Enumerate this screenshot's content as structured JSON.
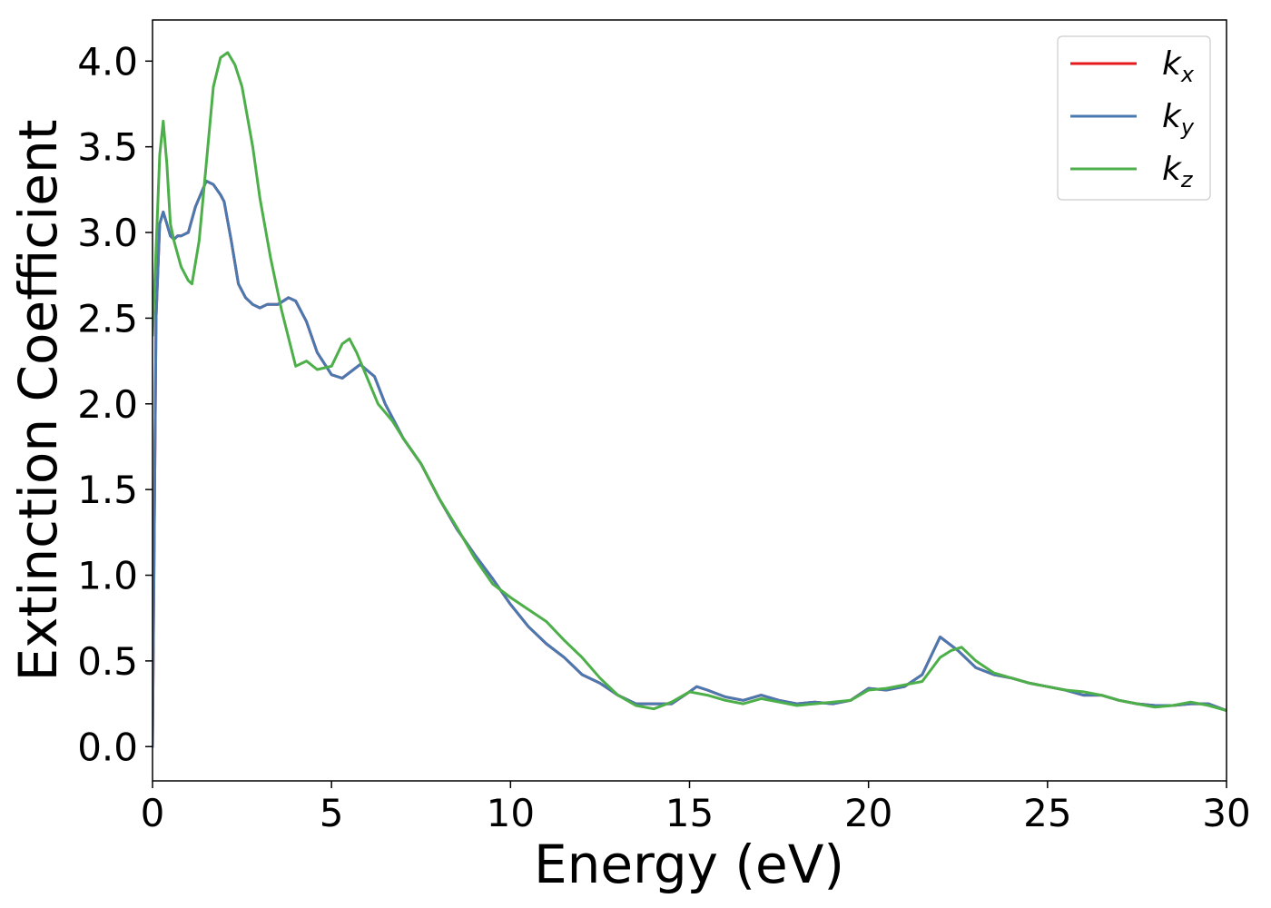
{
  "chart_data": {
    "type": "line",
    "title": "",
    "xlabel": "Energy (eV)",
    "ylabel": "Extinction Coefficient",
    "xlim": [
      0,
      30
    ],
    "ylim": [
      -0.2,
      4.24
    ],
    "xticks": [
      0,
      5,
      10,
      15,
      20,
      25,
      30
    ],
    "xtick_labels": [
      "0",
      "5",
      "10",
      "15",
      "20",
      "25",
      "30"
    ],
    "yticks": [
      0.0,
      0.5,
      1.0,
      1.5,
      2.0,
      2.5,
      3.0,
      3.5,
      4.0
    ],
    "ytick_labels": [
      "0.0",
      "0.5",
      "1.0",
      "1.5",
      "2.0",
      "2.5",
      "3.0",
      "3.5",
      "4.0"
    ],
    "grid": false,
    "legend_position": "top-right",
    "colors": {
      "kx": "#e41a1c",
      "ky": "#4a78b0",
      "kz": "#4daf4a"
    },
    "series": [
      {
        "name": "kx",
        "legend_base": "k",
        "legend_sub": "x",
        "color": "#e41a1c",
        "x": [
          0,
          0.1,
          0.2,
          0.3,
          0.4,
          0.5,
          0.6,
          0.7,
          0.8,
          1.0,
          1.2,
          1.5,
          1.7,
          1.9,
          2.0,
          2.2,
          2.4,
          2.6,
          2.8,
          3.0,
          3.2,
          3.5,
          3.8,
          4.0,
          4.3,
          4.6,
          5.0,
          5.3,
          5.8,
          6.2,
          6.5,
          7.0,
          7.5,
          8.0,
          8.5,
          9.0,
          9.5,
          10.0,
          10.5,
          11.0,
          11.5,
          12.0,
          12.5,
          13.0,
          13.5,
          14.0,
          14.5,
          15.0,
          15.2,
          15.5,
          16.0,
          16.5,
          17.0,
          17.5,
          18.0,
          18.5,
          19.0,
          19.5,
          20.0,
          20.5,
          21.0,
          21.5,
          22.0,
          22.5,
          23.0,
          23.5,
          24.0,
          24.5,
          25.0,
          25.5,
          26.0,
          26.5,
          27.0,
          27.5,
          28.0,
          28.5,
          29.0,
          29.5,
          30.0
        ],
        "values": [
          0.0,
          2.5,
          3.05,
          3.12,
          3.05,
          2.98,
          2.96,
          2.98,
          2.98,
          3.0,
          3.15,
          3.3,
          3.28,
          3.22,
          3.18,
          2.95,
          2.7,
          2.62,
          2.58,
          2.56,
          2.58,
          2.58,
          2.62,
          2.6,
          2.48,
          2.3,
          2.17,
          2.15,
          2.23,
          2.16,
          2.0,
          1.8,
          1.65,
          1.45,
          1.27,
          1.12,
          0.98,
          0.83,
          0.7,
          0.6,
          0.52,
          0.42,
          0.37,
          0.3,
          0.25,
          0.25,
          0.25,
          0.32,
          0.35,
          0.33,
          0.29,
          0.27,
          0.3,
          0.27,
          0.25,
          0.26,
          0.25,
          0.27,
          0.34,
          0.33,
          0.35,
          0.42,
          0.64,
          0.56,
          0.46,
          0.42,
          0.4,
          0.37,
          0.35,
          0.33,
          0.3,
          0.3,
          0.27,
          0.25,
          0.24,
          0.24,
          0.25,
          0.25,
          0.21
        ]
      },
      {
        "name": "ky",
        "legend_base": "k",
        "legend_sub": "y",
        "color": "#4a78b0",
        "x": [
          0,
          0.1,
          0.2,
          0.3,
          0.4,
          0.5,
          0.6,
          0.7,
          0.8,
          1.0,
          1.2,
          1.5,
          1.7,
          1.9,
          2.0,
          2.2,
          2.4,
          2.6,
          2.8,
          3.0,
          3.2,
          3.5,
          3.8,
          4.0,
          4.3,
          4.6,
          5.0,
          5.3,
          5.8,
          6.2,
          6.5,
          7.0,
          7.5,
          8.0,
          8.5,
          9.0,
          9.5,
          10.0,
          10.5,
          11.0,
          11.5,
          12.0,
          12.5,
          13.0,
          13.5,
          14.0,
          14.5,
          15.0,
          15.2,
          15.5,
          16.0,
          16.5,
          17.0,
          17.5,
          18.0,
          18.5,
          19.0,
          19.5,
          20.0,
          20.5,
          21.0,
          21.5,
          22.0,
          22.5,
          23.0,
          23.5,
          24.0,
          24.5,
          25.0,
          25.5,
          26.0,
          26.5,
          27.0,
          27.5,
          28.0,
          28.5,
          29.0,
          29.5,
          30.0
        ],
        "values": [
          0.0,
          2.5,
          3.05,
          3.12,
          3.05,
          2.98,
          2.96,
          2.98,
          2.98,
          3.0,
          3.15,
          3.3,
          3.28,
          3.22,
          3.18,
          2.95,
          2.7,
          2.62,
          2.58,
          2.56,
          2.58,
          2.58,
          2.62,
          2.6,
          2.48,
          2.3,
          2.17,
          2.15,
          2.23,
          2.16,
          2.0,
          1.8,
          1.65,
          1.45,
          1.27,
          1.12,
          0.98,
          0.83,
          0.7,
          0.6,
          0.52,
          0.42,
          0.37,
          0.3,
          0.25,
          0.25,
          0.25,
          0.32,
          0.35,
          0.33,
          0.29,
          0.27,
          0.3,
          0.27,
          0.25,
          0.26,
          0.25,
          0.27,
          0.34,
          0.33,
          0.35,
          0.42,
          0.64,
          0.56,
          0.46,
          0.42,
          0.4,
          0.37,
          0.35,
          0.33,
          0.3,
          0.3,
          0.27,
          0.25,
          0.24,
          0.24,
          0.25,
          0.25,
          0.21
        ]
      },
      {
        "name": "kz",
        "legend_base": "k",
        "legend_sub": "z",
        "color": "#4daf4a",
        "x": [
          0,
          0.1,
          0.2,
          0.3,
          0.4,
          0.5,
          0.6,
          0.8,
          1.0,
          1.1,
          1.3,
          1.5,
          1.7,
          1.9,
          2.1,
          2.3,
          2.5,
          2.8,
          3.0,
          3.3,
          3.6,
          4.0,
          4.3,
          4.6,
          5.0,
          5.3,
          5.5,
          5.7,
          6.0,
          6.3,
          6.7,
          7.0,
          7.5,
          8.0,
          8.5,
          9.0,
          9.5,
          10.0,
          10.5,
          11.0,
          11.5,
          12.0,
          12.5,
          13.0,
          13.5,
          14.0,
          14.5,
          15.0,
          15.5,
          16.0,
          16.5,
          17.0,
          17.5,
          18.0,
          18.5,
          19.0,
          19.5,
          20.0,
          20.5,
          21.0,
          21.5,
          22.0,
          22.3,
          22.6,
          23.0,
          23.5,
          24.0,
          24.5,
          25.0,
          25.5,
          26.0,
          26.5,
          27.0,
          27.5,
          28.0,
          28.5,
          29.0,
          29.5,
          30.0
        ],
        "values": [
          2.4,
          2.9,
          3.45,
          3.65,
          3.4,
          3.05,
          2.95,
          2.8,
          2.72,
          2.7,
          2.95,
          3.4,
          3.85,
          4.02,
          4.05,
          3.98,
          3.85,
          3.5,
          3.2,
          2.85,
          2.55,
          2.22,
          2.25,
          2.2,
          2.22,
          2.35,
          2.38,
          2.3,
          2.15,
          2.0,
          1.9,
          1.8,
          1.65,
          1.45,
          1.28,
          1.1,
          0.95,
          0.87,
          0.8,
          0.73,
          0.62,
          0.52,
          0.4,
          0.3,
          0.24,
          0.22,
          0.26,
          0.32,
          0.3,
          0.27,
          0.25,
          0.28,
          0.26,
          0.24,
          0.25,
          0.26,
          0.27,
          0.33,
          0.34,
          0.36,
          0.38,
          0.52,
          0.56,
          0.58,
          0.5,
          0.43,
          0.4,
          0.37,
          0.35,
          0.33,
          0.32,
          0.3,
          0.27,
          0.25,
          0.23,
          0.24,
          0.26,
          0.24,
          0.21
        ]
      }
    ]
  }
}
